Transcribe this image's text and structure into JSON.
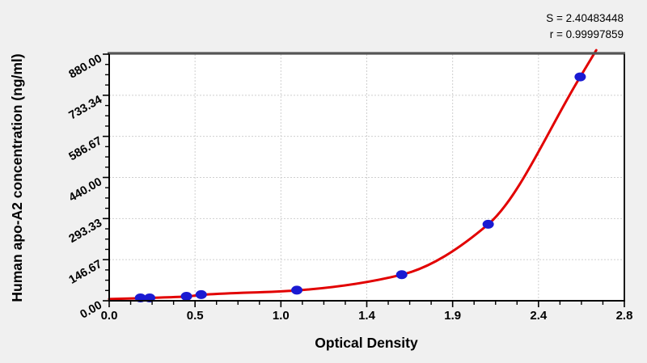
{
  "figure": {
    "background": "#f0f0f0",
    "plot_background": "#ffffff",
    "frame_color": "#555555",
    "grid_color": "#cfcfcf"
  },
  "annotations": {
    "s_label": "S = 2.40483448",
    "r_label": "r = 0.99997859"
  },
  "chart_data": {
    "type": "scatter",
    "title": "",
    "xlabel": "Optical Density",
    "ylabel": "Human apo-A2 concentration (ng/ml)",
    "xlim": [
      0,
      2.8
    ],
    "ylim": [
      0,
      880
    ],
    "x_tick_labels": [
      "0.0",
      "0.5",
      "1.0",
      "1.4",
      "1.9",
      "2.4",
      "2.8"
    ],
    "y_tick_labels": [
      "0.00",
      "146.67",
      "293.33",
      "440.00",
      "586.67",
      "733.34",
      "880.00"
    ],
    "minor_ticks_per_interval": 3,
    "grid": "dashed",
    "legend": "none",
    "fit": {
      "S": 2.40483448,
      "r": 0.99997859
    },
    "series": [
      {
        "name": "standard-points",
        "type": "scatter",
        "color": "#1a1ad2",
        "points": [
          [
            0.17,
            10
          ],
          [
            0.22,
            10
          ],
          [
            0.42,
            16
          ],
          [
            0.5,
            22
          ],
          [
            1.02,
            38
          ],
          [
            1.59,
            93
          ],
          [
            2.06,
            273
          ],
          [
            2.56,
            799
          ]
        ]
      },
      {
        "name": "fitted-curve",
        "type": "line",
        "color": "#e20000",
        "points": [
          [
            0,
            6
          ],
          [
            0.17,
            9
          ],
          [
            0.22,
            10
          ],
          [
            0.42,
            15
          ],
          [
            0.5,
            21
          ],
          [
            1.02,
            37
          ],
          [
            1.59,
            93
          ],
          [
            2.06,
            273
          ],
          [
            2.56,
            799
          ],
          [
            2.647,
            894
          ]
        ]
      }
    ]
  }
}
